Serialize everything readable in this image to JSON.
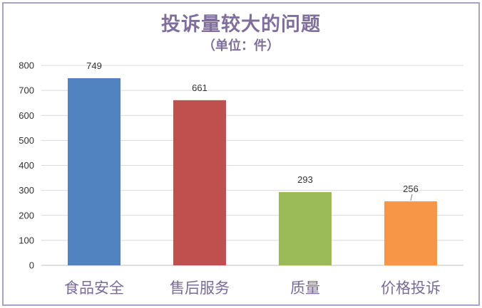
{
  "chart_data": {
    "type": "bar",
    "title": "投诉量较大的问题",
    "subtitle": "（单位：件）",
    "categories": [
      "食品安全",
      "售后服务",
      "质量",
      "价格投诉"
    ],
    "values": [
      749,
      661,
      293,
      256
    ],
    "data_labels": [
      "749",
      "661",
      "293",
      "256"
    ],
    "colors": [
      "#5283c1",
      "#c0504d",
      "#9bbb59",
      "#f79646"
    ],
    "ylim": [
      0,
      800
    ],
    "yticks": [
      0,
      100,
      200,
      300,
      400,
      500,
      600,
      700,
      800
    ],
    "grid": true,
    "legend": "none"
  }
}
